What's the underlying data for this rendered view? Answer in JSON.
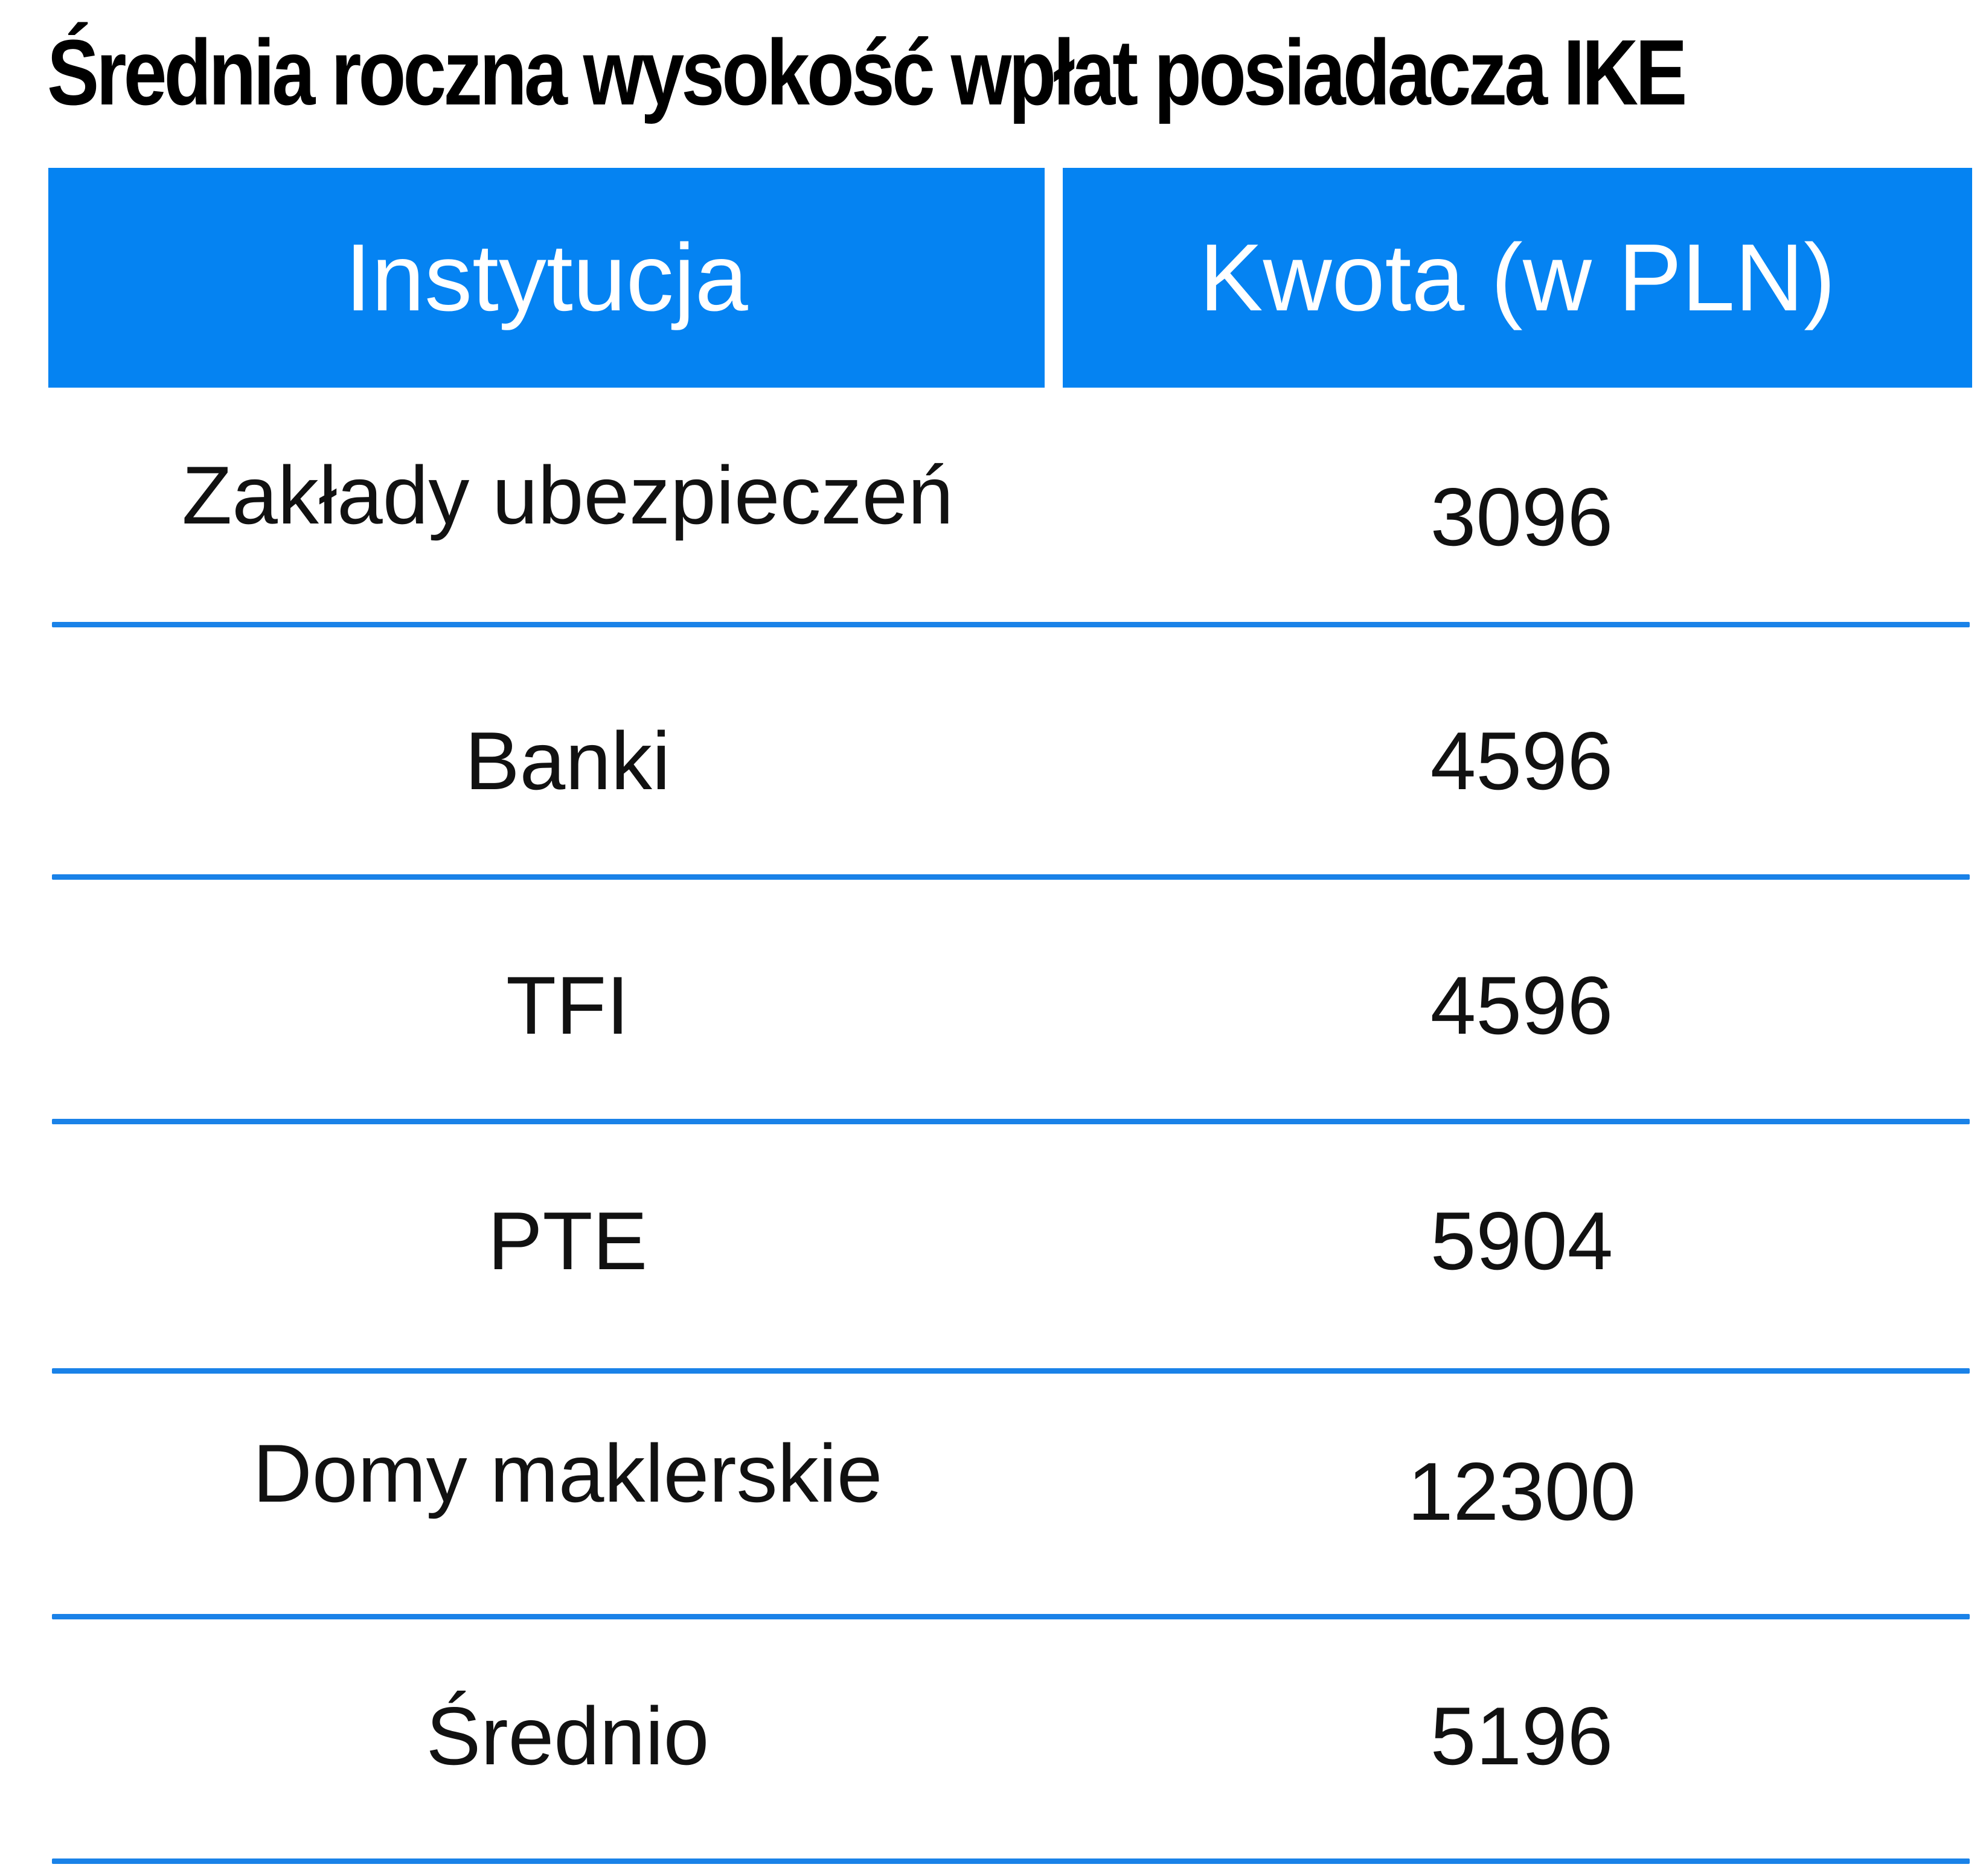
{
  "title": "Średnia roczna wysokość wpłat posiadacza IKE",
  "table": {
    "headers": {
      "institution": "Instytucja",
      "amount": "Kwota (w PLN)"
    },
    "rows": [
      {
        "institution": "Zakłady ubezpieczeń",
        "amount": "3096"
      },
      {
        "institution": "Banki",
        "amount": "4596"
      },
      {
        "institution": "TFI",
        "amount": "4596"
      },
      {
        "institution": "PTE",
        "amount": "5904"
      },
      {
        "institution": "Domy maklerskie",
        "amount": "12300"
      },
      {
        "institution": "Średnio",
        "amount": "5196"
      }
    ]
  },
  "colors": {
    "header_background": "#0583f2",
    "header_text": "#ffffff",
    "divider": "#1a82e8",
    "body_text": "#111111"
  }
}
